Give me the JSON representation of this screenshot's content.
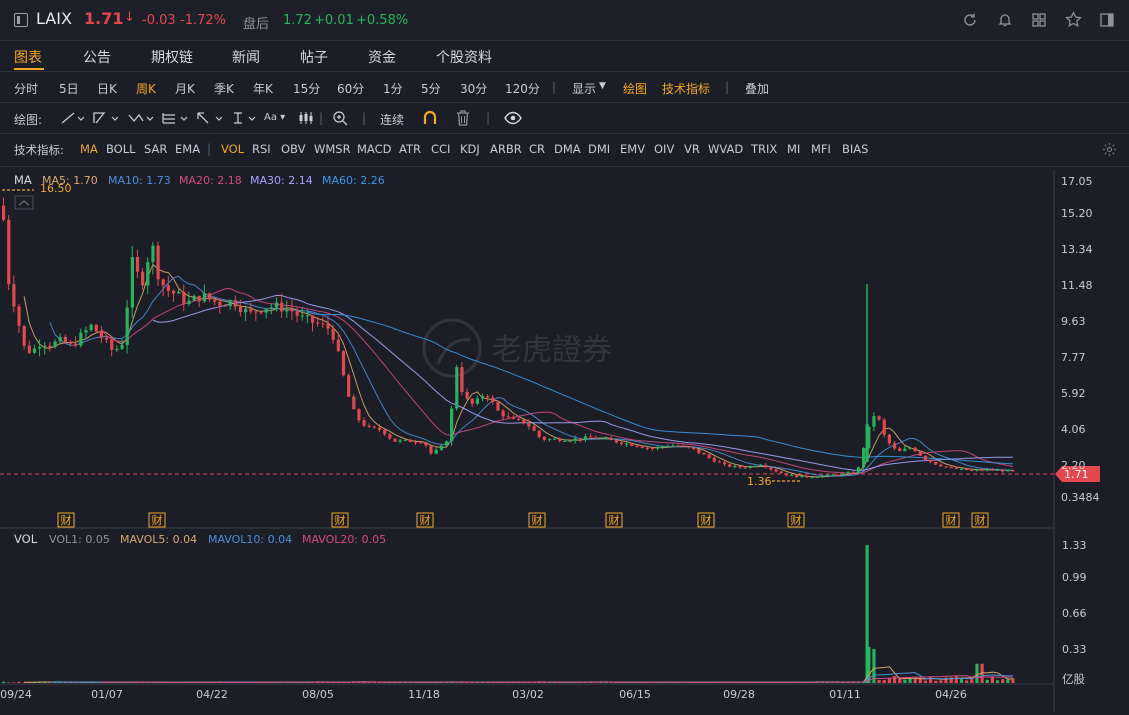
{
  "header": {
    "ticker": "LAIX",
    "price": "1.71",
    "change": "-0.03",
    "change_pct": "-1.72%",
    "after_label": "盘后",
    "after_price": "1.72",
    "after_change": "+0.01",
    "after_change_pct": "+0.58%"
  },
  "tabs": [
    "图表",
    "公告",
    "期权链",
    "新闻",
    "帖子",
    "资金",
    "个股资料"
  ],
  "periods": [
    "分时",
    "5日",
    "日K",
    "周K",
    "月K",
    "季K",
    "年K",
    "15分",
    "60分",
    "1分",
    "5分",
    "30分",
    "120分"
  ],
  "period_active": "周K",
  "toolbar_right": {
    "display": "显示",
    "draw": "绘图",
    "indicators": "技术指标",
    "overlay": "叠加"
  },
  "draw_row": {
    "label": "绘图:",
    "continuous": "连续"
  },
  "indicator_row": {
    "label": "技术指标:",
    "items": [
      "MA",
      "BOLL",
      "SAR",
      "EMA",
      "VOL",
      "RSI",
      "OBV",
      "WMSR",
      "MACD",
      "ATR",
      "CCI",
      "KDJ",
      "ARBR",
      "CR",
      "DMA",
      "DMI",
      "EMV",
      "OIV",
      "VR",
      "WVAD",
      "TRIX",
      "MI",
      "MFI",
      "BIAS"
    ]
  },
  "colors": {
    "up": "#e5474f",
    "down": "#28b45c",
    "ma5": "#d9a86c",
    "ma10": "#4c8fd8",
    "ma20": "#d24a87",
    "ma30": "#a8a6ff",
    "ma60": "#3a9be6",
    "accent": "#f5a623"
  },
  "chart_data": [
    {
      "type": "candlestick",
      "legend": {
        "name": "MA",
        "ma5": "MA5: 1.70",
        "ma10": "MA10: 1.73",
        "ma20": "MA20: 2.18",
        "ma30": "MA30: 2.14",
        "ma60": "MA60: 2.26"
      },
      "y_ticks": [
        "17.05",
        "15.20",
        "13.34",
        "11.48",
        "9.63",
        "7.77",
        "5.92",
        "4.06",
        "2.20",
        "0.3484"
      ],
      "ylim": [
        0.3484,
        17.05
      ],
      "current_price_label": "1.71",
      "high_label": "16.50",
      "low_label": "1.36",
      "x_ticks": [
        "09/24",
        "01/07",
        "04/22",
        "08/05",
        "11/18",
        "03/02",
        "06/15",
        "09/28",
        "01/11",
        "04/26"
      ],
      "earnings_marker": "财",
      "earnings_count": 10,
      "watermark": "老虎證券"
    },
    {
      "type": "bar",
      "legend": {
        "name": "VOL",
        "vol1": "VOL1: 0.05",
        "mavol5": "MAVOL5: 0.04",
        "mavol10": "MAVOL10: 0.04",
        "mavol20": "MAVOL20: 0.05"
      },
      "y_ticks": [
        "1.33",
        "0.99",
        "0.66",
        "0.33"
      ],
      "ylim": [
        0,
        1.45
      ],
      "unit": "亿股"
    }
  ]
}
